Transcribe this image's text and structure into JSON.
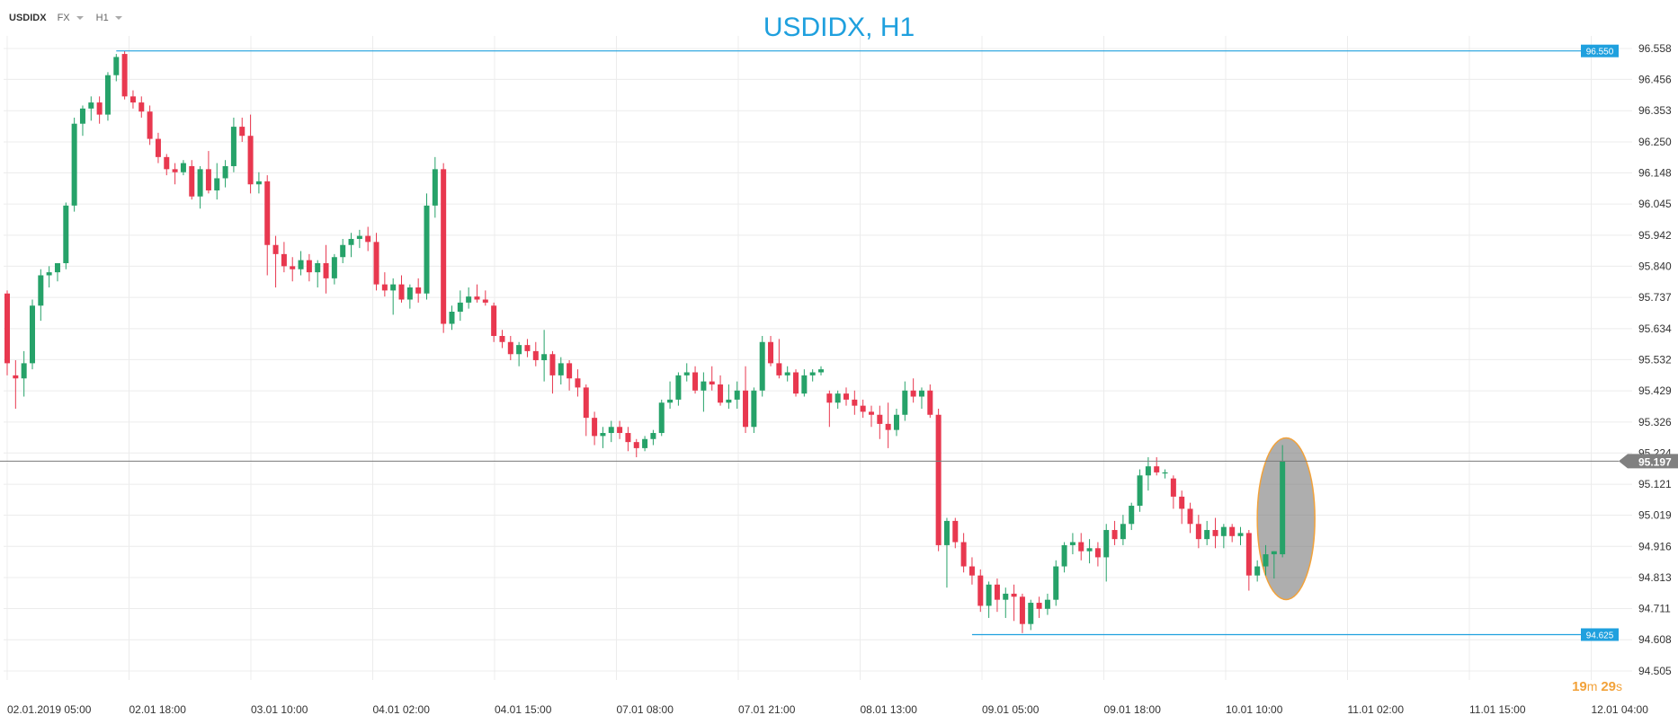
{
  "toolbar": {
    "symbol": "USDIDX",
    "market": "FX",
    "timeframe": "H1"
  },
  "countdown": {
    "minutes": "19",
    "m": "m",
    "seconds": "29",
    "s": "s"
  },
  "colors": {
    "up": "#26a269",
    "down": "#e8384f",
    "marker": "#1fa0de",
    "title": "#1fa0de"
  },
  "chart_data": {
    "type": "candlestick",
    "title": "USDIDX, H1",
    "ylim": [
      94.505,
      96.558
    ],
    "y_ticks": [
      "96.558",
      "96.456",
      "96.353",
      "96.250",
      "96.148",
      "96.045",
      "95.942",
      "95.840",
      "95.737",
      "95.634",
      "95.532",
      "95.429",
      "95.326",
      "95.224",
      "95.121",
      "95.019",
      "94.916",
      "94.813",
      "94.711",
      "94.608",
      "94.505"
    ],
    "x_ticks": [
      "02.01.2019  05:00",
      "02.01  18:00",
      "03.01  10:00",
      "04.01  02:00",
      "04.01  15:00",
      "07.01  08:00",
      "07.01  21:00",
      "08.01  13:00",
      "09.01  05:00",
      "09.01  18:00",
      "10.01  10:00",
      "11.01  02:00",
      "11.01  15:00",
      "12.01  04:00"
    ],
    "levels": [
      {
        "name": "high",
        "value": 96.55,
        "label": "96.550"
      },
      {
        "name": "low",
        "value": 94.625,
        "label": "94.625"
      },
      {
        "name": "last",
        "value": 95.197,
        "label": "95.197"
      }
    ],
    "highlight": "last candle",
    "candles": [
      [
        95.75,
        95.76,
        95.48,
        95.52
      ],
      [
        95.48,
        95.53,
        95.37,
        95.47
      ],
      [
        95.47,
        95.56,
        95.41,
        95.52
      ],
      [
        95.52,
        95.73,
        95.5,
        95.71
      ],
      [
        95.71,
        95.83,
        95.66,
        95.81
      ],
      [
        95.81,
        95.84,
        95.77,
        95.82
      ],
      [
        95.82,
        95.85,
        95.79,
        95.85
      ],
      [
        95.85,
        96.05,
        95.83,
        96.04
      ],
      [
        96.04,
        96.33,
        96.02,
        96.31
      ],
      [
        96.31,
        96.37,
        96.27,
        96.36
      ],
      [
        96.36,
        96.4,
        96.32,
        96.38
      ],
      [
        96.38,
        96.4,
        96.31,
        96.34
      ],
      [
        96.34,
        96.48,
        96.32,
        96.47
      ],
      [
        96.47,
        96.54,
        96.45,
        96.53
      ],
      [
        96.54,
        96.55,
        96.39,
        96.4
      ],
      [
        96.4,
        96.42,
        96.36,
        96.38
      ],
      [
        96.38,
        96.4,
        96.33,
        96.35
      ],
      [
        96.35,
        96.37,
        96.24,
        96.26
      ],
      [
        96.26,
        96.28,
        96.18,
        96.2
      ],
      [
        96.2,
        96.21,
        96.14,
        96.16
      ],
      [
        96.16,
        96.18,
        96.11,
        96.15
      ],
      [
        96.15,
        96.19,
        96.14,
        96.18
      ],
      [
        96.17,
        96.19,
        96.06,
        96.07
      ],
      [
        96.07,
        96.17,
        96.03,
        96.16
      ],
      [
        96.16,
        96.22,
        96.08,
        96.09
      ],
      [
        96.09,
        96.18,
        96.06,
        96.13
      ],
      [
        96.13,
        96.19,
        96.1,
        96.17
      ],
      [
        96.17,
        96.33,
        96.15,
        96.3
      ],
      [
        96.3,
        96.33,
        96.25,
        96.27
      ],
      [
        96.27,
        96.34,
        96.08,
        96.11
      ],
      [
        96.11,
        96.15,
        96.08,
        96.12
      ],
      [
        96.12,
        96.14,
        95.81,
        95.91
      ],
      [
        95.91,
        95.94,
        95.77,
        95.88
      ],
      [
        95.88,
        95.92,
        95.82,
        95.84
      ],
      [
        95.84,
        95.87,
        95.79,
        95.83
      ],
      [
        95.83,
        95.89,
        95.81,
        95.86
      ],
      [
        95.86,
        95.88,
        95.79,
        95.82
      ],
      [
        95.82,
        95.86,
        95.77,
        95.85
      ],
      [
        95.85,
        95.91,
        95.75,
        95.8
      ],
      [
        95.8,
        95.88,
        95.78,
        95.87
      ],
      [
        95.87,
        95.93,
        95.85,
        95.91
      ],
      [
        95.91,
        95.95,
        95.87,
        95.93
      ],
      [
        95.93,
        95.96,
        95.9,
        95.94
      ],
      [
        95.94,
        95.97,
        95.89,
        95.92
      ],
      [
        95.92,
        95.95,
        95.76,
        95.78
      ],
      [
        95.78,
        95.82,
        95.74,
        95.76
      ],
      [
        95.76,
        95.8,
        95.68,
        95.78
      ],
      [
        95.78,
        95.81,
        95.72,
        95.73
      ],
      [
        95.73,
        95.78,
        95.7,
        95.77
      ],
      [
        95.77,
        95.8,
        95.72,
        95.75
      ],
      [
        95.75,
        96.08,
        95.73,
        96.04
      ],
      [
        96.04,
        96.2,
        96.0,
        96.16
      ],
      [
        96.16,
        96.18,
        95.62,
        95.65
      ],
      [
        95.65,
        95.71,
        95.63,
        95.69
      ],
      [
        95.69,
        95.76,
        95.66,
        95.72
      ],
      [
        95.72,
        95.77,
        95.7,
        95.74
      ],
      [
        95.74,
        95.78,
        95.72,
        95.73
      ],
      [
        95.73,
        95.76,
        95.71,
        95.72
      ],
      [
        95.71,
        95.72,
        95.59,
        95.61
      ],
      [
        95.61,
        95.63,
        95.57,
        95.59
      ],
      [
        95.59,
        95.61,
        95.53,
        95.55
      ],
      [
        95.55,
        95.59,
        95.51,
        95.58
      ],
      [
        95.58,
        95.6,
        95.54,
        95.56
      ],
      [
        95.56,
        95.59,
        95.51,
        95.53
      ],
      [
        95.53,
        95.63,
        95.46,
        95.55
      ],
      [
        95.55,
        95.56,
        95.42,
        95.48
      ],
      [
        95.48,
        95.54,
        95.45,
        95.52
      ],
      [
        95.52,
        95.53,
        95.43,
        95.47
      ],
      [
        95.47,
        95.5,
        95.41,
        95.44
      ],
      [
        95.44,
        95.45,
        95.28,
        95.34
      ],
      [
        95.34,
        95.36,
        95.25,
        95.28
      ],
      [
        95.28,
        95.31,
        95.24,
        95.29
      ],
      [
        95.29,
        95.33,
        95.26,
        95.31
      ],
      [
        95.31,
        95.33,
        95.27,
        95.29
      ],
      [
        95.29,
        95.31,
        95.23,
        95.26
      ],
      [
        95.26,
        95.27,
        95.21,
        95.24
      ],
      [
        95.24,
        95.28,
        95.23,
        95.27
      ],
      [
        95.27,
        95.3,
        95.25,
        95.29
      ],
      [
        95.29,
        95.4,
        95.28,
        95.39
      ],
      [
        95.39,
        95.46,
        95.37,
        95.4
      ],
      [
        95.4,
        95.49,
        95.38,
        95.48
      ],
      [
        95.48,
        95.52,
        95.46,
        95.49
      ],
      [
        95.49,
        95.51,
        95.42,
        95.43
      ],
      [
        95.43,
        95.49,
        95.36,
        95.46
      ],
      [
        95.46,
        95.51,
        95.43,
        95.45
      ],
      [
        95.45,
        95.48,
        95.38,
        95.39
      ],
      [
        95.39,
        95.45,
        95.37,
        95.4
      ],
      [
        95.4,
        95.46,
        95.37,
        95.43
      ],
      [
        95.43,
        95.51,
        95.29,
        95.31
      ],
      [
        95.31,
        95.44,
        95.29,
        95.43
      ],
      [
        95.43,
        95.61,
        95.41,
        95.59
      ],
      [
        95.59,
        95.61,
        95.51,
        95.52
      ],
      [
        95.52,
        95.6,
        95.47,
        95.48
      ],
      [
        95.48,
        95.51,
        95.46,
        95.49
      ],
      [
        95.49,
        95.5,
        95.41,
        95.42
      ],
      [
        95.42,
        95.5,
        95.41,
        95.48
      ],
      [
        95.48,
        95.5,
        95.46,
        95.49
      ],
      [
        95.49,
        95.51,
        95.48,
        95.5
      ],
      [
        95.42,
        95.43,
        95.31,
        95.39
      ],
      [
        95.39,
        95.43,
        95.37,
        95.42
      ],
      [
        95.42,
        95.44,
        95.38,
        95.4
      ],
      [
        95.4,
        95.43,
        95.35,
        95.38
      ],
      [
        95.38,
        95.4,
        95.34,
        95.36
      ],
      [
        95.36,
        95.38,
        95.31,
        95.35
      ],
      [
        95.35,
        95.38,
        95.27,
        95.32
      ],
      [
        95.32,
        95.39,
        95.24,
        95.3
      ],
      [
        95.3,
        95.37,
        95.28,
        95.35
      ],
      [
        95.35,
        95.46,
        95.33,
        95.43
      ],
      [
        95.43,
        95.47,
        95.39,
        95.41
      ],
      [
        95.41,
        95.44,
        95.37,
        95.43
      ],
      [
        95.43,
        95.45,
        95.34,
        95.35
      ],
      [
        95.35,
        95.37,
        94.9,
        94.92
      ],
      [
        94.92,
        95.01,
        94.78,
        95.0
      ],
      [
        95.0,
        95.01,
        94.91,
        94.93
      ],
      [
        94.93,
        94.96,
        94.83,
        94.85
      ],
      [
        94.85,
        94.88,
        94.79,
        94.82
      ],
      [
        94.82,
        94.84,
        94.7,
        94.72
      ],
      [
        94.72,
        94.8,
        94.68,
        94.79
      ],
      [
        94.79,
        94.81,
        94.7,
        94.74
      ],
      [
        94.74,
        94.78,
        94.68,
        94.76
      ],
      [
        94.76,
        94.79,
        94.67,
        94.75
      ],
      [
        94.75,
        94.76,
        94.63,
        94.66
      ],
      [
        94.66,
        94.74,
        94.64,
        94.73
      ],
      [
        94.73,
        94.75,
        94.68,
        94.71
      ],
      [
        94.71,
        94.76,
        94.69,
        94.74
      ],
      [
        94.74,
        94.87,
        94.72,
        94.85
      ],
      [
        94.85,
        94.93,
        94.83,
        94.92
      ],
      [
        94.92,
        94.96,
        94.89,
        94.93
      ],
      [
        94.93,
        94.96,
        94.87,
        94.9
      ],
      [
        94.9,
        94.94,
        94.86,
        94.91
      ],
      [
        94.91,
        94.93,
        94.85,
        94.88
      ],
      [
        94.88,
        94.99,
        94.8,
        94.97
      ],
      [
        94.97,
        95.0,
        94.92,
        94.94
      ],
      [
        94.94,
        95.02,
        94.92,
        94.99
      ],
      [
        94.99,
        95.06,
        94.97,
        95.05
      ],
      [
        95.05,
        95.17,
        95.03,
        95.15
      ],
      [
        95.15,
        95.21,
        95.1,
        95.18
      ],
      [
        95.18,
        95.21,
        95.15,
        95.16
      ],
      [
        95.16,
        95.17,
        95.14,
        95.16
      ],
      [
        95.14,
        95.15,
        95.04,
        95.08
      ],
      [
        95.08,
        95.1,
        94.99,
        95.04
      ],
      [
        95.04,
        95.06,
        94.96,
        94.99
      ],
      [
        94.99,
        95.02,
        94.91,
        94.94
      ],
      [
        94.94,
        95.0,
        94.92,
        94.97
      ],
      [
        94.97,
        95.01,
        94.91,
        94.95
      ],
      [
        94.95,
        94.99,
        94.91,
        94.98
      ],
      [
        94.98,
        94.99,
        94.93,
        94.95
      ],
      [
        94.95,
        94.98,
        94.92,
        94.96
      ],
      [
        94.96,
        94.97,
        94.77,
        94.82
      ],
      [
        94.82,
        94.87,
        94.8,
        94.85
      ],
      [
        94.85,
        94.92,
        94.82,
        94.89
      ],
      [
        94.89,
        94.9,
        94.81,
        94.9
      ],
      [
        94.89,
        95.25,
        94.88,
        95.197
      ]
    ]
  }
}
